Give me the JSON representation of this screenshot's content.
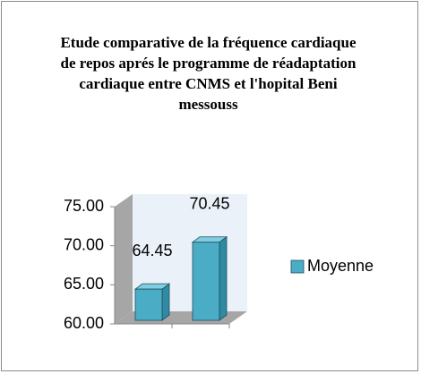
{
  "chart_data": {
    "type": "bar3d",
    "title": "Etude comparative de la fréquence cardiaque de repos aprés le programme de réadaptation cardiaque entre CNMS et l'hopital Beni messouss",
    "categories": [
      null,
      null
    ],
    "series": [
      {
        "name": "Moyenne",
        "color": "#4bacc6",
        "values": [
          64.45,
          70.45
        ]
      }
    ],
    "ylim": [
      60,
      75
    ],
    "yticks": [
      {
        "value": 60,
        "label": "60.00"
      },
      {
        "value": 65,
        "label": "65.00"
      },
      {
        "value": 70,
        "label": "70.00"
      },
      {
        "value": 75,
        "label": "75.00"
      }
    ],
    "legend": "right"
  }
}
